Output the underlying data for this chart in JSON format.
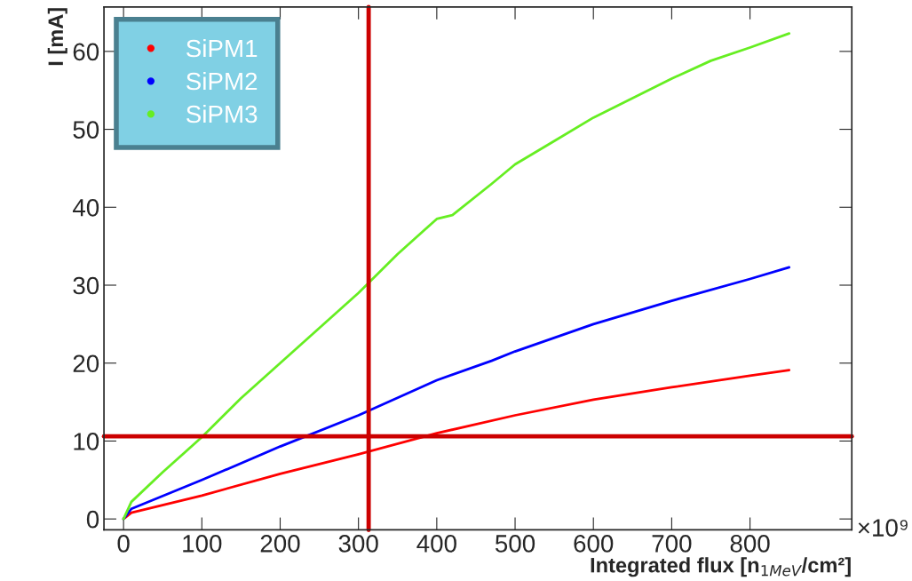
{
  "chart_data": {
    "type": "line",
    "xlabel": "Integrated flux [n$_{1MeV}$/cm²]",
    "ylabel": "I [mA]",
    "annotations": [
      "×10⁹"
    ],
    "xlim": [
      -25,
      930
    ],
    "ylim": [
      -1.4,
      65.7
    ],
    "xticks": [
      0,
      100,
      200,
      300,
      400,
      500,
      600,
      700,
      800
    ],
    "yticks": [
      0,
      10,
      20,
      30,
      40,
      50,
      60
    ],
    "grid": false,
    "legend": "top left",
    "marker": "none",
    "line_style": "solid",
    "ref_lines": [
      {
        "axis": "x",
        "value": 313,
        "color": "#cc0000"
      },
      {
        "axis": "y",
        "value": 10.6,
        "color": "#cc0000"
      }
    ],
    "series": [
      {
        "name": "SiPM1",
        "color": "#ff0000",
        "x": [
          0,
          10,
          100,
          200,
          300,
          400,
          500,
          600,
          700,
          800,
          850
        ],
        "values": [
          0,
          0.8,
          3,
          5.8,
          8.3,
          11,
          13.3,
          15.3,
          16.9,
          18.4,
          19.1
        ]
      },
      {
        "name": "SiPM2",
        "color": "#0000ff",
        "x": [
          0,
          10,
          100,
          200,
          300,
          400,
          470,
          500,
          600,
          700,
          800,
          850
        ],
        "values": [
          0,
          1.3,
          5,
          9.3,
          13.3,
          17.8,
          20.3,
          21.5,
          25,
          28,
          30.8,
          32.3
        ]
      },
      {
        "name": "SiPM3",
        "color": "#66ee22",
        "x": [
          0,
          10,
          50,
          100,
          150,
          200,
          250,
          300,
          350,
          400,
          420,
          470,
          500,
          550,
          600,
          650,
          700,
          750,
          800,
          850
        ],
        "values": [
          0,
          2.2,
          6,
          10.5,
          15.5,
          20,
          24.5,
          29,
          34,
          38.5,
          39,
          43,
          45.5,
          48.5,
          51.5,
          54,
          56.5,
          58.8,
          60.5,
          62.3
        ]
      }
    ]
  }
}
